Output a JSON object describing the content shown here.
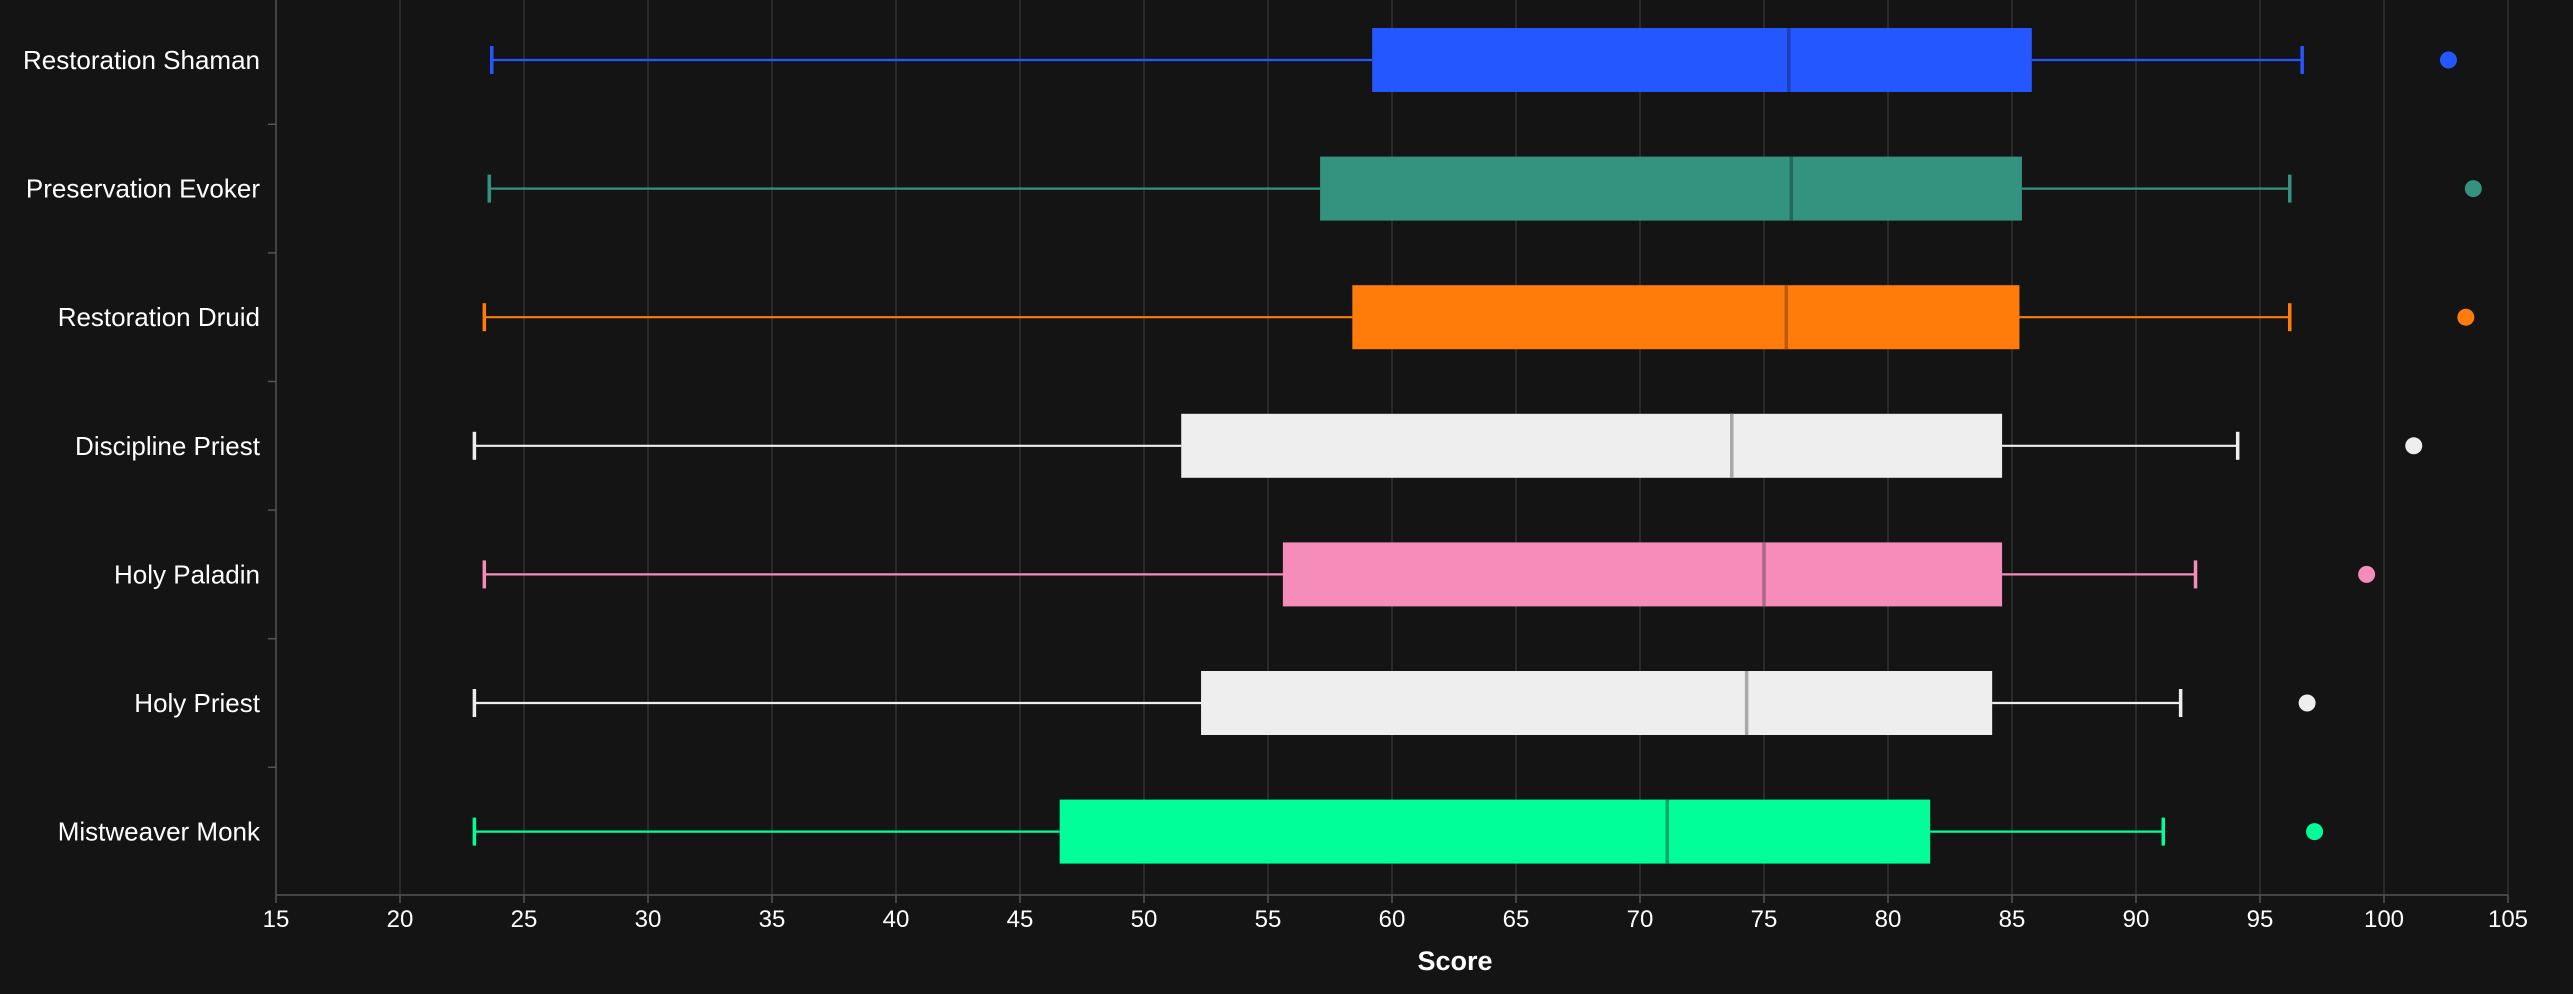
{
  "chart_data": {
    "type": "box",
    "xlabel": "Score",
    "xlim": [
      15,
      105
    ],
    "xticks": [
      15,
      20,
      25,
      30,
      35,
      40,
      45,
      50,
      55,
      60,
      65,
      70,
      75,
      80,
      85,
      90,
      95,
      100,
      105
    ],
    "grid": "vertical",
    "categories": [
      "Restoration Shaman",
      "Preservation Evoker",
      "Restoration Druid",
      "Discipline Priest",
      "Holy Paladin",
      "Holy Priest",
      "Mistweaver Monk"
    ],
    "series": [
      {
        "category": "Restoration Shaman",
        "color": "#2457ff",
        "median_color": "#1a3fb8",
        "min": 23.7,
        "q1": 59.2,
        "median": 76.0,
        "q3": 85.8,
        "max": 96.7,
        "outliers": [
          102.6
        ]
      },
      {
        "category": "Preservation Evoker",
        "color": "#33937f",
        "median_color": "#236b5c",
        "min": 23.6,
        "q1": 57.1,
        "median": 76.1,
        "q3": 85.4,
        "max": 96.2,
        "outliers": [
          103.6
        ]
      },
      {
        "category": "Restoration Druid",
        "color": "#ff7c0a",
        "median_color": "#b85a08",
        "min": 23.4,
        "q1": 58.4,
        "median": 75.9,
        "q3": 85.3,
        "max": 96.2,
        "outliers": [
          103.3
        ]
      },
      {
        "category": "Discipline Priest",
        "color": "#eeeeee",
        "median_color": "#a8a8a8",
        "min": 23.0,
        "q1": 51.5,
        "median": 73.7,
        "q3": 84.6,
        "max": 94.1,
        "outliers": [
          101.2
        ]
      },
      {
        "category": "Holy Paladin",
        "color": "#f58cba",
        "median_color": "#b06686",
        "min": 23.4,
        "q1": 55.6,
        "median": 75.0,
        "q3": 84.6,
        "max": 92.4,
        "outliers": [
          99.3
        ]
      },
      {
        "category": "Holy Priest",
        "color": "#eeeeee",
        "median_color": "#a8a8a8",
        "min": 23.0,
        "q1": 52.3,
        "median": 74.3,
        "q3": 84.2,
        "max": 91.8,
        "outliers": [
          96.9
        ]
      },
      {
        "category": "Mistweaver Monk",
        "color": "#00ff98",
        "median_color": "#00a866",
        "min": 23.0,
        "q1": 46.6,
        "median": 71.1,
        "q3": 81.7,
        "max": 91.1,
        "outliers": [
          97.2
        ]
      }
    ]
  }
}
